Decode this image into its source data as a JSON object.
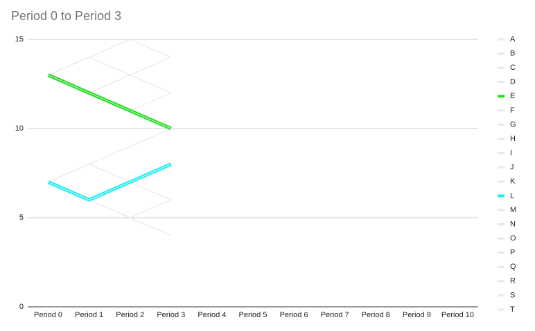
{
  "chart_data": {
    "type": "line",
    "title": "Period 0 to Period 3",
    "categories": [
      "Period 0",
      "Period 1",
      "Period 2",
      "Period 3",
      "Period 4",
      "Period 5",
      "Period 6",
      "Period 7",
      "Period 8",
      "Period 9",
      "Period 10"
    ],
    "ylim": [
      0,
      15
    ],
    "yticks": [
      0,
      5,
      10,
      15
    ],
    "grid": true,
    "legend": "right",
    "series": [
      {
        "name": "A",
        "color": "#e8e8e8",
        "width": 1,
        "values": [
          13,
          14,
          15,
          14,
          null,
          null,
          null,
          null,
          null,
          null,
          null
        ]
      },
      {
        "name": "B",
        "color": "#e8e8e8",
        "width": 1,
        "values": [
          13,
          14,
          13,
          14,
          null,
          null,
          null,
          null,
          null,
          null,
          null
        ]
      },
      {
        "name": "C",
        "color": "#e8e8e8",
        "width": 1,
        "values": [
          13,
          12,
          13,
          12,
          null,
          null,
          null,
          null,
          null,
          null,
          null
        ]
      },
      {
        "name": "D",
        "color": "#e8e8e8",
        "width": 1,
        "values": [
          13,
          14,
          13,
          12,
          null,
          null,
          null,
          null,
          null,
          null,
          null
        ]
      },
      {
        "name": "E",
        "color": "#22dd22",
        "width": 5,
        "values": [
          13,
          12,
          11,
          10,
          null,
          null,
          null,
          null,
          null,
          null,
          null
        ]
      },
      {
        "name": "F",
        "color": "#e8e8e8",
        "width": 1,
        "values": [
          13,
          12,
          11,
          12,
          null,
          null,
          null,
          null,
          null,
          null,
          null
        ]
      },
      {
        "name": "G",
        "color": "#e8e8e8",
        "width": 1,
        "values": [
          7,
          8,
          9,
          10,
          null,
          null,
          null,
          null,
          null,
          null,
          null
        ]
      },
      {
        "name": "H",
        "color": "#e8e8e8",
        "width": 1,
        "values": [
          7,
          8,
          7,
          6,
          null,
          null,
          null,
          null,
          null,
          null,
          null
        ]
      },
      {
        "name": "I",
        "color": "#e8e8e8",
        "width": 1,
        "values": [
          7,
          6,
          5,
          4,
          null,
          null,
          null,
          null,
          null,
          null,
          null
        ]
      },
      {
        "name": "J",
        "color": "#e8e8e8",
        "width": 1,
        "values": [
          7,
          6,
          5,
          6,
          null,
          null,
          null,
          null,
          null,
          null,
          null
        ]
      },
      {
        "name": "K",
        "color": "#e8e8e8",
        "width": 1,
        "values": [
          7,
          8,
          7,
          8,
          null,
          null,
          null,
          null,
          null,
          null,
          null
        ]
      },
      {
        "name": "L",
        "color": "#22eeee",
        "width": 5,
        "values": [
          7,
          6,
          7,
          8,
          null,
          null,
          null,
          null,
          null,
          null,
          null
        ]
      },
      {
        "name": "M",
        "color": "#e8e8e8",
        "width": 1,
        "values": [
          7,
          6,
          7,
          6,
          null,
          null,
          null,
          null,
          null,
          null,
          null
        ]
      },
      {
        "name": "N",
        "color": "#e8e8e8",
        "width": 1,
        "values": [
          13,
          14,
          15,
          14,
          null,
          null,
          null,
          null,
          null,
          null,
          null
        ]
      },
      {
        "name": "O",
        "color": "#e8e8e8",
        "width": 1,
        "values": [
          13,
          12,
          13,
          14,
          null,
          null,
          null,
          null,
          null,
          null,
          null
        ]
      },
      {
        "name": "P",
        "color": "#e8e8e8",
        "width": 1,
        "values": [
          13,
          12,
          11,
          10,
          null,
          null,
          null,
          null,
          null,
          null,
          null
        ]
      },
      {
        "name": "Q",
        "color": "#e8e8e8",
        "width": 1,
        "values": [
          7,
          8,
          9,
          10,
          null,
          null,
          null,
          null,
          null,
          null,
          null
        ]
      },
      {
        "name": "R",
        "color": "#e8e8e8",
        "width": 1,
        "values": [
          7,
          8,
          7,
          6,
          null,
          null,
          null,
          null,
          null,
          null,
          null
        ]
      },
      {
        "name": "S",
        "color": "#e8e8e8",
        "width": 1,
        "values": [
          7,
          6,
          5,
          4,
          null,
          null,
          null,
          null,
          null,
          null,
          null
        ]
      },
      {
        "name": "T",
        "color": "#e8e8e8",
        "width": 1,
        "values": [
          7,
          6,
          7,
          8,
          null,
          null,
          null,
          null,
          null,
          null,
          null
        ]
      }
    ]
  }
}
